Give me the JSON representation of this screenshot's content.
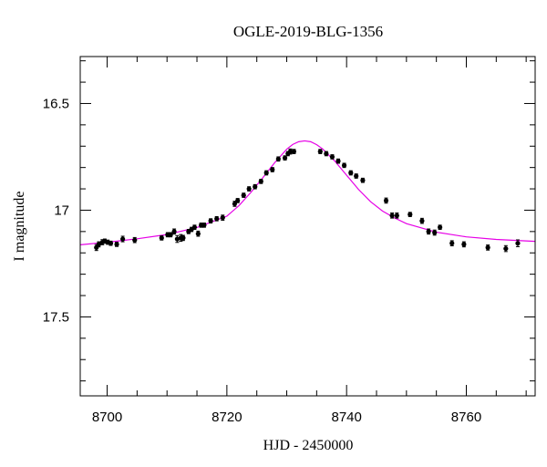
{
  "chart_data": {
    "type": "scatter",
    "title": "OGLE-2019-BLG-1356",
    "xlabel": "HJD - 2450000",
    "ylabel": "I magnitude",
    "xlim": [
      8695.5,
      8771.5
    ],
    "ylim": [
      17.87,
      16.28
    ],
    "y_inverted": true,
    "grid": false,
    "x_major_ticks": [
      8700,
      8720,
      8740,
      8760
    ],
    "y_major_ticks": [
      16.5,
      17,
      17.5
    ],
    "x_tick_labels": [
      "8700",
      "8720",
      "8740",
      "8760"
    ],
    "y_tick_labels": [
      "16.5",
      "17",
      "17.5"
    ],
    "model_color": "#e600e6",
    "point_color": "#000000",
    "model": {
      "name": "",
      "x": [
        8695.5,
        8700,
        8705,
        8710,
        8715,
        8720,
        8722,
        8724,
        8726,
        8728,
        8730,
        8731,
        8732,
        8733,
        8734,
        8735,
        8736,
        8738,
        8740,
        8742,
        8744,
        8746,
        8748,
        8750,
        8755,
        8760,
        8765,
        8771.5
      ],
      "y": [
        17.162,
        17.15,
        17.134,
        17.114,
        17.081,
        17.028,
        16.979,
        16.917,
        16.848,
        16.777,
        16.714,
        16.692,
        16.679,
        16.675,
        16.679,
        16.693,
        16.713,
        16.769,
        16.836,
        16.903,
        16.96,
        17.004,
        17.036,
        17.063,
        17.103,
        17.125,
        17.137,
        17.146
      ]
    },
    "series": [
      {
        "name": "",
        "x": [
          8698.2,
          8698.6,
          8699.2,
          8699.6,
          8700.1,
          8700.6,
          8701.6,
          8702.6,
          8704.6,
          8709.1,
          8710.1,
          8710.6,
          8711.2,
          8711.7,
          8712.3,
          8712.7,
          8713.6,
          8714.1,
          8714.6,
          8715.2,
          8715.7,
          8716.2,
          8717.3,
          8718.3,
          8719.3,
          8721.3,
          8721.8,
          8722.8,
          8723.7,
          8724.7,
          8725.7,
          8726.6,
          8727.6,
          8728.6,
          8729.7,
          8730.2,
          8730.6,
          8731.2,
          8735.6,
          8736.6,
          8737.6,
          8738.6,
          8739.6,
          8740.7,
          8741.6,
          8742.7,
          8746.6,
          8747.6,
          8748.4,
          8750.6,
          8752.6,
          8753.7,
          8754.7,
          8755.6,
          8757.6,
          8759.6,
          8763.6,
          8766.6,
          8768.6
        ],
        "y": [
          17.175,
          17.16,
          17.15,
          17.145,
          17.15,
          17.155,
          17.16,
          17.135,
          17.14,
          17.13,
          17.115,
          17.115,
          17.1,
          17.135,
          17.13,
          17.13,
          17.1,
          17.09,
          17.08,
          17.11,
          17.07,
          17.07,
          17.05,
          17.04,
          17.035,
          16.97,
          16.955,
          16.93,
          16.9,
          16.89,
          16.865,
          16.825,
          16.81,
          16.76,
          16.755,
          16.735,
          16.725,
          16.725,
          16.725,
          16.735,
          16.75,
          16.77,
          16.79,
          16.825,
          16.84,
          16.86,
          16.955,
          17.025,
          17.025,
          17.02,
          17.05,
          17.1,
          17.105,
          17.08,
          17.155,
          17.16,
          17.175,
          17.18,
          17.155
        ],
        "err": [
          0.014,
          0.012,
          0.012,
          0.01,
          0.01,
          0.01,
          0.01,
          0.013,
          0.012,
          0.01,
          0.01,
          0.01,
          0.012,
          0.016,
          0.016,
          0.012,
          0.01,
          0.01,
          0.01,
          0.012,
          0.01,
          0.01,
          0.01,
          0.01,
          0.012,
          0.012,
          0.01,
          0.01,
          0.01,
          0.01,
          0.01,
          0.01,
          0.01,
          0.01,
          0.01,
          0.01,
          0.012,
          0.01,
          0.01,
          0.01,
          0.01,
          0.01,
          0.01,
          0.01,
          0.01,
          0.01,
          0.012,
          0.012,
          0.012,
          0.01,
          0.012,
          0.012,
          0.012,
          0.01,
          0.012,
          0.012,
          0.012,
          0.014,
          0.016
        ]
      }
    ]
  }
}
